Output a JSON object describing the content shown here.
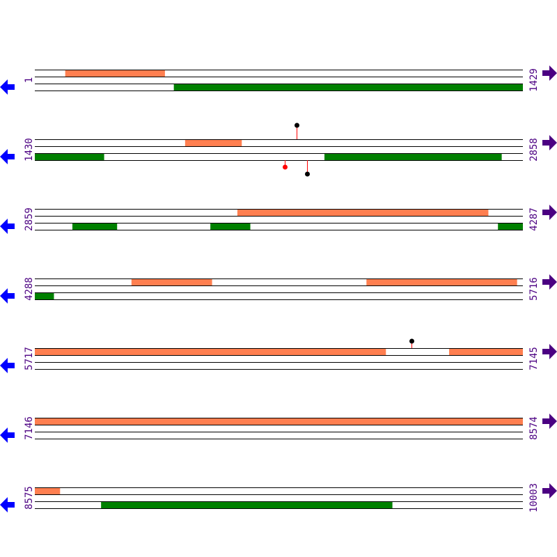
{
  "colors": {
    "forward_feature": "#ff7f50",
    "reverse_feature": "#008000",
    "left_arrow": "#0000ff",
    "right_arrow": "#4b0082",
    "label": "#4b0082",
    "marker_red": "#ff0000",
    "marker_black": "#000000"
  },
  "icons": {
    "left": "arrow-left-icon",
    "right": "arrow-right-icon"
  },
  "rows": [
    {
      "start": "1",
      "end": "1429",
      "forward": [
        [
          90,
          381
        ]
      ],
      "reverse": [
        [
          408,
          1429
        ]
      ],
      "markers": []
    },
    {
      "start": "1430",
      "end": "2858",
      "forward": [
        [
          1870,
          2035
        ]
      ],
      "reverse": [
        [
          1430,
          1632
        ],
        [
          2278,
          2796
        ]
      ],
      "markers": [
        {
          "pos": 2196,
          "strand": "top",
          "head": "black"
        },
        {
          "pos": 2162,
          "strand": "bottom",
          "head": "red",
          "short": true
        },
        {
          "pos": 2227,
          "strand": "bottom",
          "head": "black"
        }
      ]
    },
    {
      "start": "2859",
      "end": "4287",
      "forward": [
        [
          3452,
          4186
        ]
      ],
      "reverse": [
        [
          2969,
          3099
        ],
        [
          3373,
          3489
        ],
        [
          4215,
          4287
        ]
      ],
      "markers": []
    },
    {
      "start": "4288",
      "end": "5716",
      "forward": [
        [
          4571,
          4806
        ],
        [
          5259,
          5699
        ]
      ],
      "reverse": [
        [
          4288,
          4343
        ]
      ],
      "markers": []
    },
    {
      "start": "5717",
      "end": "7145",
      "forward": [
        [
          5717,
          6744
        ],
        [
          6930,
          7145
        ]
      ],
      "reverse": [],
      "markers": [
        {
          "pos": 6820,
          "strand": "top",
          "head": "black",
          "short": true
        }
      ]
    },
    {
      "start": "7146",
      "end": "8574",
      "forward": [
        [
          7146,
          8574
        ]
      ],
      "reverse": [],
      "markers": []
    },
    {
      "start": "8575",
      "end": "10003",
      "forward": [
        [
          8575,
          8648
        ]
      ],
      "reverse": [
        [
          8769,
          9621
        ]
      ],
      "markers": []
    }
  ]
}
